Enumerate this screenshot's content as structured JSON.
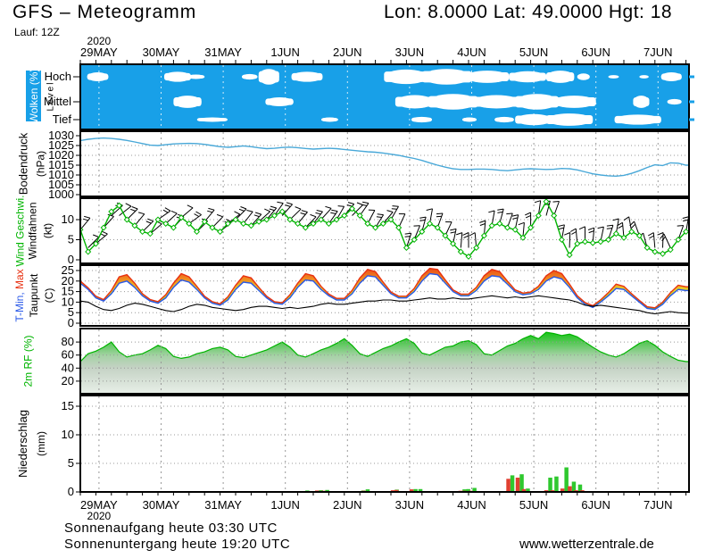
{
  "header": {
    "title": "GFS – Meteogramm",
    "coords": "Lon: 8.0000 Lat: 49.0000 Hgt: 18",
    "run": "Lauf: 12Z"
  },
  "footer": {
    "sunrise": "Sonnenaufgang heute 03:30 UTC",
    "sunset": "Sonnenuntergang heute 19:20 UTC",
    "website": "www.wetterzentrale.de"
  },
  "chart_data": {
    "type": "meteogram",
    "year": "2020",
    "x_ticks": [
      "29MAY",
      "30MAY",
      "31MAY",
      "1JUN",
      "2JUN",
      "3JUN",
      "4JUN",
      "5JUN",
      "6JUN",
      "7JUN"
    ],
    "colors": {
      "cloud_bg": "#18A0E8",
      "pressure_line": "#48A8D8",
      "wind_line": "#00B400",
      "temp_min_line": "#2858E8",
      "temp_max_line": "#E83010",
      "dew_line": "#000000",
      "rh_line": "#00B400",
      "precip_green": "#2EC82E",
      "precip_red": "#E04030",
      "grid": "#999999",
      "cloud_grid": "#CFEAF8"
    },
    "panels": {
      "clouds": {
        "label": "Wolken (%)",
        "axis_label": "Level",
        "rows": [
          "Hoch",
          "Mittel",
          "Tief"
        ],
        "blobs": {
          "hoch": [
            [
              0.11,
              0.45,
              8
            ],
            [
              1.35,
              1.78,
              9
            ],
            [
              1.72,
              2.0,
              4
            ],
            [
              2.6,
              2.85,
              5
            ],
            [
              2.87,
              3.2,
              14
            ],
            [
              3.4,
              3.9,
              9
            ],
            [
              4.89,
              5.6,
              13
            ],
            [
              5.5,
              6.3,
              14
            ],
            [
              6.2,
              6.9,
              11
            ],
            [
              6.9,
              7.5,
              10
            ],
            [
              7.5,
              7.95,
              11
            ],
            [
              8.0,
              8.2,
              6
            ],
            [
              8.5,
              8.67,
              3
            ],
            [
              9.0,
              9.15,
              3
            ],
            [
              9.35,
              9.68,
              8
            ]
          ],
          "mittel": [
            [
              1.5,
              1.95,
              11
            ],
            [
              2.98,
              3.43,
              8
            ],
            [
              5.07,
              5.7,
              12
            ],
            [
              5.6,
              6.4,
              14
            ],
            [
              6.3,
              7.1,
              12
            ],
            [
              7.0,
              7.7,
              14
            ],
            [
              7.6,
              8.3,
              11
            ],
            [
              8.9,
              9.16,
              11
            ],
            [
              9.45,
              9.68,
              5
            ]
          ],
          "tief": [
            [
              1.88,
              2.37,
              4
            ],
            [
              3.88,
              4.15,
              4
            ],
            [
              5.33,
              5.66,
              5
            ],
            [
              6.15,
              6.38,
              4
            ],
            [
              6.67,
              6.98,
              5
            ],
            [
              7.0,
              7.6,
              10
            ],
            [
              7.5,
              8.25,
              11
            ],
            [
              8.6,
              9.35,
              9
            ]
          ]
        }
      },
      "pressure": {
        "label": "Bodendruck",
        "unit": "(hPa)",
        "ticks": [
          1030,
          1025,
          1020,
          1015,
          1010,
          1005,
          1000
        ],
        "values": [
          1027.5,
          1028.2,
          1028.6,
          1028.8,
          1028.6,
          1028.2,
          1027.6,
          1026.8,
          1026.0,
          1025.2,
          1025.0,
          1025.4,
          1025.8,
          1026.0,
          1026.1,
          1026.0,
          1025.6,
          1025.0,
          1024.4,
          1024.1,
          1024.4,
          1024.8,
          1024.4,
          1023.8,
          1023.4,
          1023.6,
          1024.0,
          1024.2,
          1023.9,
          1023.5,
          1023.2,
          1023.4,
          1023.6,
          1023.4,
          1023.0,
          1022.6,
          1022.2,
          1021.8,
          1021.6,
          1021.2,
          1020.6,
          1020.0,
          1019.2,
          1018.4,
          1017.4,
          1016.2,
          1015.0,
          1014.0,
          1013.2,
          1012.8,
          1012.8,
          1013.0,
          1013.0,
          1012.8,
          1012.4,
          1012.2,
          1012.6,
          1013.0,
          1013.2,
          1013.0,
          1012.8,
          1012.9,
          1013.3,
          1013.2,
          1012.6,
          1011.6,
          1010.6,
          1010.0,
          1009.6,
          1009.4,
          1009.8,
          1010.8,
          1012.2,
          1013.8,
          1015.2,
          1014.8,
          1016.2,
          1016.0,
          1015.0
        ]
      },
      "wind": {
        "label1": "Wind Geschwi.",
        "label2": "Windfahnen",
        "unit": "(kt)",
        "ticks": [
          10,
          5,
          0
        ],
        "speed": [
          7.5,
          2,
          4,
          8,
          12,
          13.5,
          10,
          8.5,
          7,
          6.5,
          10,
          9,
          8,
          10.5,
          9,
          7,
          9.5,
          8,
          7,
          9,
          10,
          9,
          8.5,
          9.5,
          10,
          11,
          12,
          10,
          9,
          8,
          9,
          10,
          9,
          10,
          11,
          12.7,
          11,
          9,
          8,
          9,
          10,
          8,
          3,
          5,
          7,
          9,
          8,
          6,
          4,
          2,
          0.8,
          3,
          6,
          8.5,
          9,
          8,
          7.5,
          5.5,
          8,
          11,
          14.5,
          11,
          5,
          1.2,
          4,
          4.5,
          4.2,
          4.5,
          5,
          6.5,
          5.5,
          7,
          6,
          3,
          2,
          1.5,
          2.5,
          5,
          7
        ],
        "barb_angles": [
          50,
          45,
          40,
          48,
          42,
          38,
          45,
          50,
          44,
          40,
          35,
          42,
          48,
          40,
          36,
          44,
          50,
          46,
          40,
          38,
          45,
          52,
          48,
          42,
          50,
          55,
          48,
          44,
          50,
          46,
          52,
          48,
          55,
          60,
          50,
          45,
          55,
          62,
          58,
          50,
          60,
          65,
          72,
          68,
          75,
          80,
          70,
          65,
          78,
          85,
          90,
          95,
          85,
          80,
          75,
          70,
          78,
          85,
          90,
          82,
          75,
          70,
          80,
          88,
          95,
          90,
          85,
          78,
          72,
          80,
          95,
          100,
          110,
          105,
          95,
          88,
          115,
          70,
          80
        ]
      },
      "temp": {
        "label_min": "T-Min,",
        "label_max": " Max",
        "label_dew": "Taupunkt",
        "unit": "(C)",
        "ticks": [
          25,
          20,
          15,
          10,
          5,
          0
        ],
        "t_low": [
          19,
          16,
          12,
          10.5,
          14,
          19,
          20,
          17,
          13,
          10.5,
          9.5,
          12,
          17,
          20.5,
          19.5,
          16,
          12,
          9.5,
          8.5,
          11,
          16,
          19.5,
          19,
          15.5,
          12,
          9.5,
          9,
          12,
          17,
          20.5,
          20,
          16,
          13,
          11,
          11,
          14,
          19,
          22.5,
          22,
          18,
          14,
          12,
          12,
          15,
          20,
          23.5,
          23,
          19,
          15,
          13,
          13,
          15.5,
          20,
          22.5,
          22,
          18.5,
          15,
          13.5,
          14,
          16,
          20,
          22,
          21,
          17,
          12,
          9,
          7.5,
          10,
          13,
          16.5,
          16,
          13,
          10,
          7,
          6.5,
          9,
          13,
          16,
          15.5
        ],
        "t_high": [
          20,
          16.8,
          12.8,
          11.2,
          15.5,
          22,
          23,
          19,
          14,
          11.2,
          10.2,
          13.5,
          19,
          23.5,
          22,
          17.5,
          12.8,
          10.2,
          9.2,
          12.5,
          18,
          22.5,
          21.5,
          17,
          12.8,
          10.2,
          9.7,
          13.5,
          19,
          23.5,
          22.5,
          17.5,
          13.8,
          11.8,
          11.8,
          15.5,
          21.5,
          25.5,
          24.5,
          19.5,
          14.8,
          12.8,
          12.8,
          16.5,
          22.5,
          26,
          25.5,
          20.5,
          15.8,
          13.8,
          13.8,
          17,
          22.5,
          25.5,
          24.5,
          20,
          15.8,
          14.3,
          14.8,
          17.5,
          22.5,
          25,
          23.5,
          18.5,
          13,
          9.8,
          8.3,
          11,
          14.5,
          18.5,
          17.5,
          14,
          10.8,
          7.8,
          7.3,
          10,
          14.5,
          18,
          17.3
        ],
        "dew": [
          10.5,
          10,
          8,
          6.5,
          6,
          7,
          8.5,
          9.5,
          9,
          8,
          7,
          6,
          5.5,
          6.5,
          8,
          9,
          8.5,
          7.5,
          7,
          6.5,
          6,
          6.5,
          7.5,
          8,
          8,
          7.5,
          7,
          7.5,
          7,
          7.5,
          8,
          9,
          9.5,
          9,
          9,
          9.5,
          10,
          10.5,
          10.5,
          11,
          11,
          10.5,
          10.5,
          11,
          11.5,
          12,
          11.5,
          11.5,
          12,
          11.5,
          11.5,
          12,
          12.5,
          13,
          12.5,
          12,
          12.5,
          12,
          12.5,
          13,
          12.5,
          12,
          11.5,
          11,
          10,
          8.5,
          8,
          8.5,
          8,
          7.5,
          7,
          6.5,
          6,
          5,
          4.5,
          5,
          5.5,
          5,
          4.8
        ]
      },
      "rh": {
        "label": "2m RF (%)",
        "ticks": [
          80,
          60,
          40,
          20
        ],
        "values": [
          50,
          62,
          66,
          72,
          80,
          65,
          57,
          60,
          62,
          68,
          75,
          70,
          58,
          55,
          57,
          62,
          65,
          70,
          72,
          68,
          58,
          56,
          60,
          64,
          68,
          74,
          80,
          72,
          60,
          57,
          62,
          68,
          72,
          78,
          85,
          75,
          62,
          58,
          64,
          70,
          74,
          80,
          85,
          78,
          63,
          60,
          66,
          72,
          74,
          80,
          82,
          76,
          62,
          60,
          67,
          74,
          78,
          85,
          90,
          85,
          95,
          93,
          90,
          92,
          88,
          80,
          72,
          65,
          60,
          57,
          62,
          70,
          78,
          82,
          75,
          65,
          58,
          52,
          50
        ]
      },
      "precip": {
        "label": "Niederschlag",
        "unit": "(mm)",
        "ticks": [
          15,
          10,
          5,
          0
        ],
        "bars": [
          [
            3.63,
            0.25,
            0.12
          ],
          [
            3.85,
            0.3,
            0.25
          ],
          [
            3.95,
            0.35,
            0.2
          ],
          [
            4.24,
            0,
            0.15
          ],
          [
            4.38,
            0.1,
            0.1
          ],
          [
            4.53,
            0.25,
            0.15
          ],
          [
            4.6,
            0.45,
            0.2
          ],
          [
            5.07,
            0.4,
            0.3
          ],
          [
            5.13,
            0,
            0.35
          ],
          [
            5.37,
            0.5,
            0.45
          ],
          [
            5.45,
            0.5,
            0.1
          ],
          [
            5.53,
            0.12,
            0.05
          ],
          [
            5.85,
            0,
            0.15
          ],
          [
            5.92,
            0,
            0.1
          ],
          [
            6.16,
            0.45,
            0.2
          ],
          [
            6.22,
            0.5,
            0.2
          ],
          [
            6.32,
            0.7,
            0.2
          ],
          [
            6.93,
            2.9,
            2.3
          ],
          [
            7.08,
            3.1,
            2.5
          ],
          [
            7.18,
            0.6,
            0.5
          ],
          [
            7.54,
            2.5,
            0.3
          ],
          [
            7.64,
            2.7,
            0.3
          ],
          [
            7.8,
            4.3,
            0.6
          ],
          [
            7.92,
            1.8,
            1
          ],
          [
            8.02,
            1.3,
            0.3
          ],
          [
            8.12,
            0,
            0.3
          ],
          [
            8.23,
            0,
            0.15
          ],
          [
            8.62,
            0,
            0.12
          ],
          [
            8.76,
            0,
            0.1
          ]
        ]
      }
    }
  }
}
